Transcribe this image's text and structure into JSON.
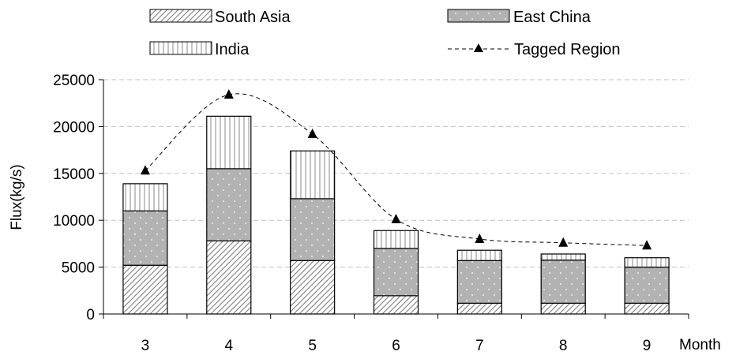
{
  "chart_data": {
    "type": "bar",
    "stacked": true,
    "title": "",
    "xlabel": "Month",
    "ylabel": "Flux(kg/s)",
    "ylim": [
      0,
      25000
    ],
    "yticks": [
      "0",
      "5000",
      "10000",
      "15000",
      "20000",
      "25000"
    ],
    "categories": [
      "3",
      "4",
      "5",
      "6",
      "7",
      "8",
      "9"
    ],
    "series": [
      {
        "name": "South Asia",
        "kind": "bar",
        "pattern": "diagonal-hatch",
        "values": [
          5200,
          7800,
          5700,
          1950,
          1150,
          1150,
          1150
        ]
      },
      {
        "name": "East China",
        "kind": "bar",
        "pattern": "gray-dots",
        "values": [
          5800,
          7700,
          6600,
          5050,
          4550,
          4600,
          3850
        ]
      },
      {
        "name": "India",
        "kind": "bar",
        "pattern": "vertical-lines",
        "values": [
          2900,
          5600,
          5100,
          1900,
          1100,
          650,
          1000
        ]
      },
      {
        "name": "Tagged Region",
        "kind": "line",
        "style": "dashed-triangle",
        "values": [
          15300,
          23400,
          19200,
          10100,
          8000,
          7600,
          7300
        ]
      }
    ],
    "grid": true,
    "legend": "top",
    "colors": {
      "east_china_fill": "#b2b2b2",
      "grid": "#c0c0c0",
      "axis": "#000000"
    }
  }
}
